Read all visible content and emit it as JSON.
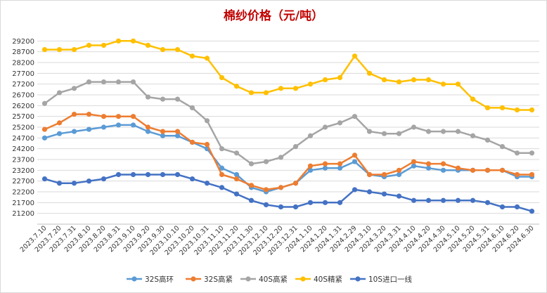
{
  "chart_data": {
    "type": "line",
    "title": "棉纱价格（元/吨）",
    "title_color": "#c00000",
    "xlabel": "",
    "ylabel": "",
    "ylim": [
      20700,
      29700
    ],
    "yticks": [
      21200,
      21700,
      22200,
      22700,
      23200,
      23700,
      24200,
      24700,
      25200,
      25700,
      26200,
      26700,
      27200,
      27700,
      28200,
      28700,
      29200
    ],
    "grid": true,
    "legend_position": "bottom",
    "categories": [
      "2023.7.10",
      "2023.7.20",
      "2023.7.31",
      "2023.8.10",
      "2023.8.20",
      "2023.8.31",
      "2023.9.10",
      "2023.9.20",
      "2023.9.30",
      "2023.10.10",
      "2023.10.20",
      "2023.10.31",
      "2023.11.10",
      "2023.11.20",
      "2023.11.30",
      "2023.12.10",
      "2023.12.20",
      "2023.12.31",
      "2024.1.10",
      "2024.1.20",
      "2024.1.31",
      "2024.2.29",
      "2024.3.10",
      "2024.3.20",
      "2024.3.31",
      "2024.4.10",
      "2024.4.20",
      "2024.4.30",
      "2024.5.10",
      "2024.5.20",
      "2024.5.31",
      "2024.6.10",
      "2024.6.20",
      "2024.6.30"
    ],
    "series": [
      {
        "name": "32S高环",
        "color": "#5b9bd5",
        "values": [
          24700,
          24900,
          25000,
          25100,
          25200,
          25300,
          25300,
          25000,
          24800,
          24800,
          24500,
          24200,
          23300,
          23000,
          22400,
          22200,
          22400,
          22600,
          23200,
          23300,
          23300,
          23600,
          23000,
          22900,
          23000,
          23400,
          23300,
          23200,
          23200,
          23200,
          23200,
          23200,
          22900,
          22900
        ]
      },
      {
        "name": "32S高紧",
        "color": "#ed7d31",
        "values": [
          25100,
          25400,
          25800,
          25800,
          25700,
          25700,
          25700,
          25200,
          25000,
          25000,
          24500,
          24400,
          23000,
          22800,
          22500,
          22300,
          22400,
          22600,
          23400,
          23500,
          23500,
          23900,
          23000,
          23000,
          23200,
          23600,
          23500,
          23500,
          23300,
          23200,
          23200,
          23200,
          23000,
          23000
        ]
      },
      {
        "name": "40S高紧",
        "color": "#a5a5a5",
        "values": [
          26300,
          26800,
          27000,
          27300,
          27300,
          27300,
          27300,
          26600,
          26500,
          26500,
          26100,
          25500,
          24200,
          24000,
          23500,
          23600,
          23800,
          24300,
          24800,
          25200,
          25400,
          25700,
          25000,
          24900,
          24900,
          25200,
          25000,
          25000,
          25000,
          24800,
          24600,
          24300,
          24000,
          24000
        ]
      },
      {
        "name": "40S精紧",
        "color": "#ffc000",
        "values": [
          28800,
          28800,
          28800,
          29000,
          29000,
          29200,
          29200,
          29000,
          28800,
          28800,
          28500,
          28400,
          27500,
          27100,
          26800,
          26800,
          27000,
          27000,
          27200,
          27400,
          27500,
          28500,
          27700,
          27400,
          27300,
          27400,
          27400,
          27200,
          27200,
          26500,
          26100,
          26100,
          26000,
          26000
        ]
      },
      {
        "name": "10S进口一线",
        "color": "#4472c4",
        "values": [
          22800,
          22600,
          22600,
          22700,
          22800,
          23000,
          23000,
          23000,
          23000,
          23000,
          22800,
          22600,
          22400,
          22100,
          21800,
          21600,
          21500,
          21500,
          21700,
          21700,
          21700,
          22300,
          22200,
          22100,
          22000,
          21800,
          21800,
          21800,
          21800,
          21800,
          21700,
          21500,
          21500,
          21300
        ]
      }
    ]
  }
}
